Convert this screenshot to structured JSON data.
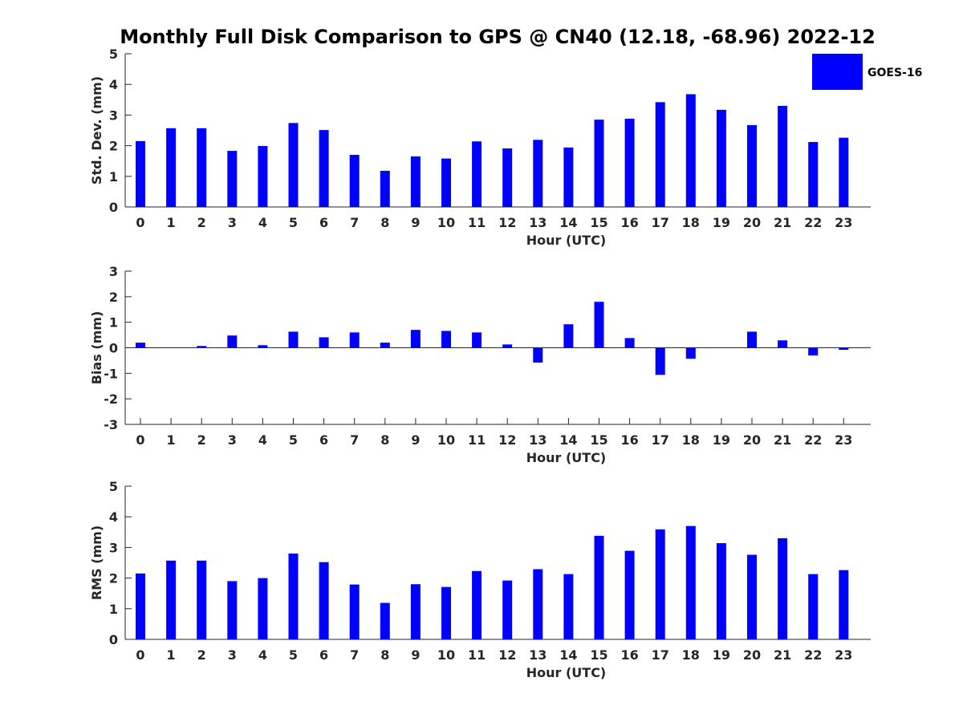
{
  "chart_data": {
    "type": "bar",
    "title": "Monthly Full Disk Comparison to GPS @ CN40 (12.18, -68.96) 2022-12",
    "legend": {
      "label": "GOES-16",
      "placement": "top-right",
      "color": "#0000ff"
    },
    "bar_color": "#0000ff",
    "grid": false,
    "categories": [
      "0",
      "1",
      "2",
      "3",
      "4",
      "5",
      "6",
      "7",
      "8",
      "9",
      "10",
      "11",
      "12",
      "13",
      "14",
      "15",
      "16",
      "17",
      "18",
      "19",
      "20",
      "21",
      "22",
      "23"
    ],
    "panels": [
      {
        "name": "std",
        "xlabel": "Hour (UTC)",
        "ylabel": "Std. Dev. (mm)",
        "ylim": [
          0,
          5
        ],
        "yticks": [
          "0",
          "1",
          "2",
          "3",
          "4",
          "5"
        ],
        "values": [
          2.15,
          2.57,
          2.57,
          1.83,
          1.99,
          2.74,
          2.51,
          1.7,
          1.18,
          1.65,
          1.58,
          2.14,
          1.91,
          2.19,
          1.94,
          2.85,
          2.88,
          3.42,
          3.68,
          3.17,
          2.67,
          3.3,
          2.12,
          2.26
        ]
      },
      {
        "name": "bias",
        "xlabel": "Hour (UTC)",
        "ylabel": "Bias (mm)",
        "ylim": [
          -3,
          3
        ],
        "yticks": [
          "-3",
          "-2",
          "-1",
          "0",
          "1",
          "2",
          "3"
        ],
        "values": [
          0.2,
          0.0,
          0.07,
          0.48,
          0.1,
          0.63,
          0.41,
          0.6,
          0.2,
          0.7,
          0.66,
          0.6,
          0.13,
          -0.58,
          0.92,
          1.8,
          0.38,
          -1.06,
          -0.43,
          0.0,
          0.63,
          0.29,
          -0.3,
          -0.08
        ]
      },
      {
        "name": "rms",
        "xlabel": "Hour (UTC)",
        "ylabel": "RMS (mm)",
        "ylim": [
          0,
          5
        ],
        "yticks": [
          "0",
          "1",
          "2",
          "3",
          "4",
          "5"
        ],
        "values": [
          2.15,
          2.57,
          2.57,
          1.9,
          2.0,
          2.8,
          2.52,
          1.79,
          1.19,
          1.8,
          1.71,
          2.23,
          1.92,
          2.29,
          2.13,
          3.38,
          2.89,
          3.59,
          3.7,
          3.14,
          2.76,
          3.3,
          2.13,
          2.26
        ]
      }
    ]
  }
}
